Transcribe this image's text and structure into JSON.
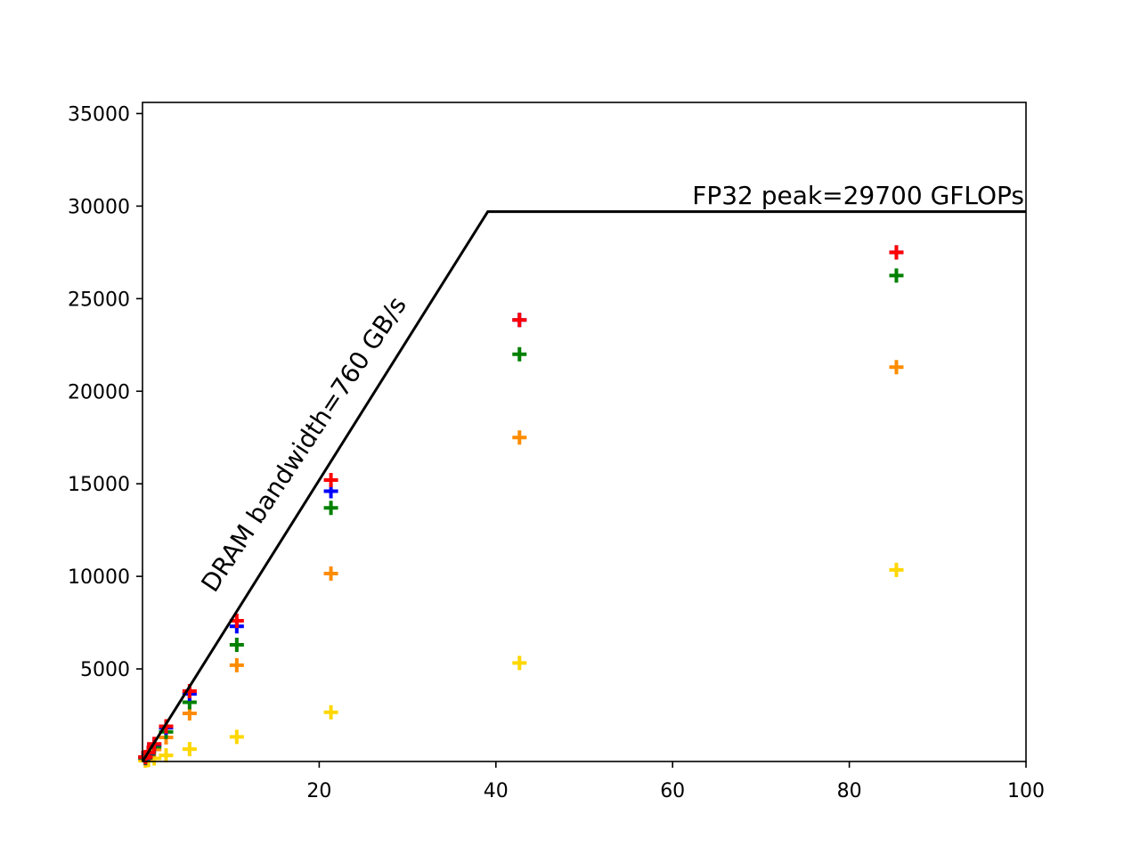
{
  "chart_data": {
    "type": "scatter",
    "title": "",
    "xlabel": "",
    "ylabel": "",
    "xlim": [
      0,
      100
    ],
    "ylim": [
      0,
      35600
    ],
    "x_ticks": [
      20,
      40,
      60,
      80,
      100
    ],
    "y_ticks": [
      5000,
      10000,
      15000,
      20000,
      25000,
      30000,
      35000
    ],
    "grid": false,
    "legend": "none",
    "marker": "plus",
    "roofline": {
      "points": [
        [
          0,
          0
        ],
        [
          39.08,
          29700
        ],
        [
          100,
          29700
        ]
      ],
      "color": "#000000"
    },
    "annotations": {
      "bandwidth": "DRAM bandwidth=760 GB/s",
      "peak": "FP32 peak=29700 GFLOPs"
    },
    "series": [
      {
        "color": "#ffd700",
        "points": [
          [
            0.33,
            40
          ],
          [
            0.67,
            80
          ],
          [
            1.33,
            170
          ],
          [
            2.67,
            330
          ],
          [
            5.33,
            670
          ],
          [
            10.67,
            1330
          ],
          [
            21.33,
            2660
          ],
          [
            42.67,
            5320
          ],
          [
            85.33,
            10350
          ]
        ]
      },
      {
        "color": "#ff8c00",
        "points": [
          [
            0.33,
            150
          ],
          [
            0.67,
            330
          ],
          [
            1.33,
            650
          ],
          [
            2.67,
            1300
          ],
          [
            5.33,
            2600
          ],
          [
            10.67,
            5200
          ],
          [
            21.33,
            10150
          ],
          [
            42.67,
            17500
          ],
          [
            85.33,
            21300
          ]
        ]
      },
      {
        "color": "#008000",
        "points": [
          [
            0.33,
            200
          ],
          [
            0.67,
            400
          ],
          [
            1.33,
            800
          ],
          [
            2.67,
            1600
          ],
          [
            5.33,
            3200
          ],
          [
            10.67,
            6300
          ],
          [
            21.33,
            13700
          ],
          [
            42.67,
            22000
          ],
          [
            85.33,
            26250
          ]
        ]
      },
      {
        "color": "#0000ff",
        "points": [
          [
            0.33,
            230
          ],
          [
            0.67,
            460
          ],
          [
            1.33,
            920
          ],
          [
            2.67,
            1830
          ],
          [
            5.33,
            3650
          ],
          [
            10.67,
            7300
          ],
          [
            21.33,
            14600
          ],
          [
            42.67,
            23850
          ],
          [
            85.33,
            27500
          ]
        ]
      },
      {
        "color": "#ff0000",
        "points": [
          [
            0.33,
            240
          ],
          [
            0.67,
            480
          ],
          [
            1.33,
            950
          ],
          [
            2.67,
            1900
          ],
          [
            5.33,
            3800
          ],
          [
            10.67,
            7600
          ],
          [
            21.33,
            15200
          ],
          [
            42.67,
            23850
          ],
          [
            85.33,
            27500
          ]
        ]
      }
    ]
  }
}
